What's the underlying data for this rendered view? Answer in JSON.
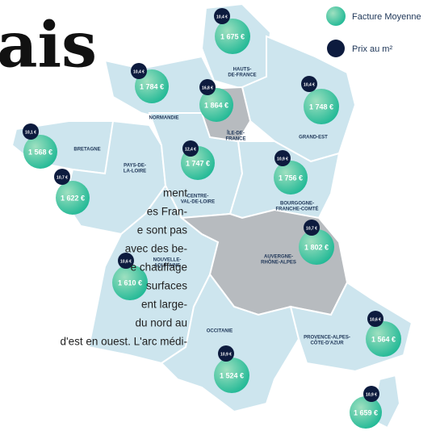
{
  "title": "ais",
  "legend": [
    {
      "label": "Facture Moyenne"
    },
    {
      "label": "Prix au m²"
    }
  ],
  "regions": [
    {
      "name_lines": [
        "HAUTS-",
        "DE-FRANCE"
      ],
      "facture": "1 675 €",
      "prix": "10,4 €"
    },
    {
      "name_lines": [
        "NORMANDIE"
      ],
      "facture": "1 784 €",
      "prix": "10,4 €"
    },
    {
      "name_lines": [
        "ÎLE-DE-",
        "FRANCE"
      ],
      "facture": "1 864 €",
      "prix": "16,8 €"
    },
    {
      "name_lines": [
        "GRAND-EST"
      ],
      "facture": "1 748 €",
      "prix": "10,4 €"
    },
    {
      "name_lines": [
        "BRETAGNE"
      ],
      "facture": "1 568 €",
      "prix": "10,1 €"
    },
    {
      "name_lines": [
        "PAYS-DE-",
        "LA-LOIRE"
      ],
      "facture": "1 622 €",
      "prix": "10,7 €"
    },
    {
      "name_lines": [
        "CENTRE-",
        "VAL-DE-LOIRE"
      ],
      "facture": "1 747 €",
      "prix": "12,4 €"
    },
    {
      "name_lines": [
        "BOURGOGNE-",
        "FRANCHE-COMTÉ"
      ],
      "facture": "1 756 €",
      "prix": "10,9 €"
    },
    {
      "name_lines": [
        "NOUVELLE-",
        "AQUITAINE"
      ],
      "facture": "1 610 €",
      "prix": "10,6 €"
    },
    {
      "name_lines": [
        "AUVERGNE-",
        "RHÔNE-ALPES"
      ],
      "facture": "1 802 €",
      "prix": "10,7 €"
    },
    {
      "name_lines": [
        "OCCITANIE"
      ],
      "facture": "1 524 €",
      "prix": "10,9 €"
    },
    {
      "name_lines": [
        "PROVENCE-ALPES-",
        "CÔTE-D'AZUR"
      ],
      "facture": "1 564 €",
      "prix": "10,6 €"
    },
    {
      "name_lines": [],
      "facture": "1 659 €",
      "prix": "10,9 €"
    }
  ],
  "article": {
    "lines": [
      "ment",
      "es Fran-",
      "e sont pas",
      "avec des be-",
      "e chauffage",
      "surfaces",
      "ent large-",
      "du nord au",
      "d'est en ouest. L'arc médi-"
    ]
  }
}
